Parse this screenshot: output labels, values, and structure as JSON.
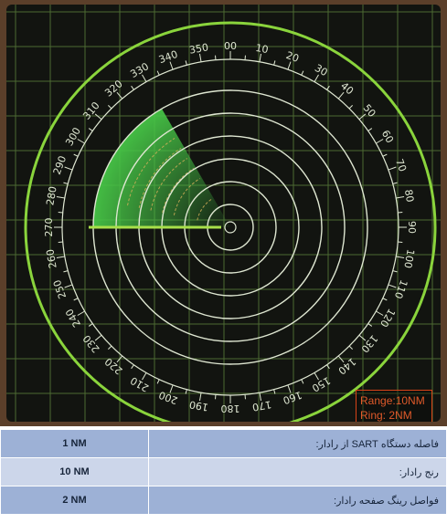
{
  "radar": {
    "bearing_labels": [
      "00",
      "10",
      "20",
      "30",
      "40",
      "50",
      "60",
      "70",
      "80",
      "90",
      "100",
      "110",
      "120",
      "130",
      "140",
      "150",
      "160",
      "170",
      "180",
      "190",
      "200",
      "210",
      "220",
      "230",
      "240",
      "250",
      "260",
      "270",
      "280",
      "290",
      "300",
      "310",
      "320",
      "330",
      "340",
      "350"
    ],
    "sector_start_bearing": 270,
    "sector_end_bearing": 330,
    "ring_count": 6,
    "colors": {
      "scope_bg": "#121410",
      "grid": "#4c6a32",
      "ring": "#dfe7d2",
      "outer_ring": "#8ad43c",
      "sweep": "#46c446",
      "heading_line": "#a8e04a",
      "echo_arcs": "#d8b25a"
    }
  },
  "range_box": {
    "range": "Range:10NM",
    "ring": "Ring: 2NM"
  },
  "info_table": [
    {
      "value": "1 NM",
      "label": "فاصله دستگاه SART از رادار:"
    },
    {
      "value": "10 NM",
      "label": "رنج رادار:"
    },
    {
      "value": "2 NM",
      "label": "فواصل رینگ صفحه رادار:"
    }
  ]
}
